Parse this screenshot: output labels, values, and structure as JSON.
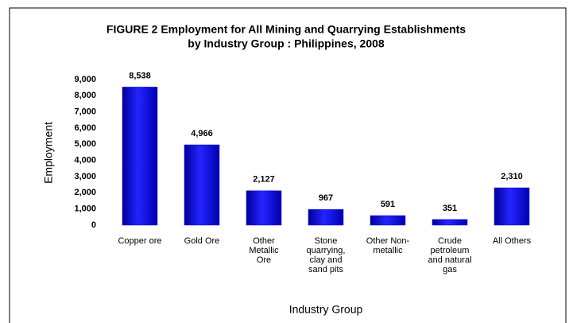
{
  "chart_data": {
    "type": "bar",
    "title": [
      "FIGURE 2   Employment for All Mining and Quarrying Establishments",
      "by Industry Group : Philippines, 2008"
    ],
    "x_label": "Industry Group",
    "y_label": "Employment",
    "categories": [
      "Copper ore",
      "Gold Ore",
      "Other Metallic Ore",
      "Stone quarrying, clay and sand pits",
      "Other Non-metallic",
      "Crude petroleum and natural gas",
      "All Others"
    ],
    "values": [
      8538,
      4966,
      2127,
      967,
      591,
      351,
      2310
    ],
    "value_labels": [
      "8,538",
      "4,966",
      "2,127",
      "967",
      "591",
      "351",
      "2,310"
    ],
    "color": "#1010e0",
    "ylim": [
      0,
      9000
    ],
    "yticks": [
      0,
      {
        "value": 1000,
        "label": "1,000"
      },
      {
        "value": 2000,
        "label": "2,000"
      },
      {
        "value": 3000,
        "label": "3,000"
      },
      {
        "value": 4000,
        "label": "4,000"
      },
      {
        "value": 5000,
        "label": "5,000"
      },
      {
        "value": 6000,
        "label": "6,000"
      },
      {
        "value": 7000,
        "label": "7,000"
      },
      {
        "value": 8000,
        "label": "8,000"
      },
      {
        "value": 9000,
        "label": "9,000"
      }
    ],
    "grid": false
  }
}
